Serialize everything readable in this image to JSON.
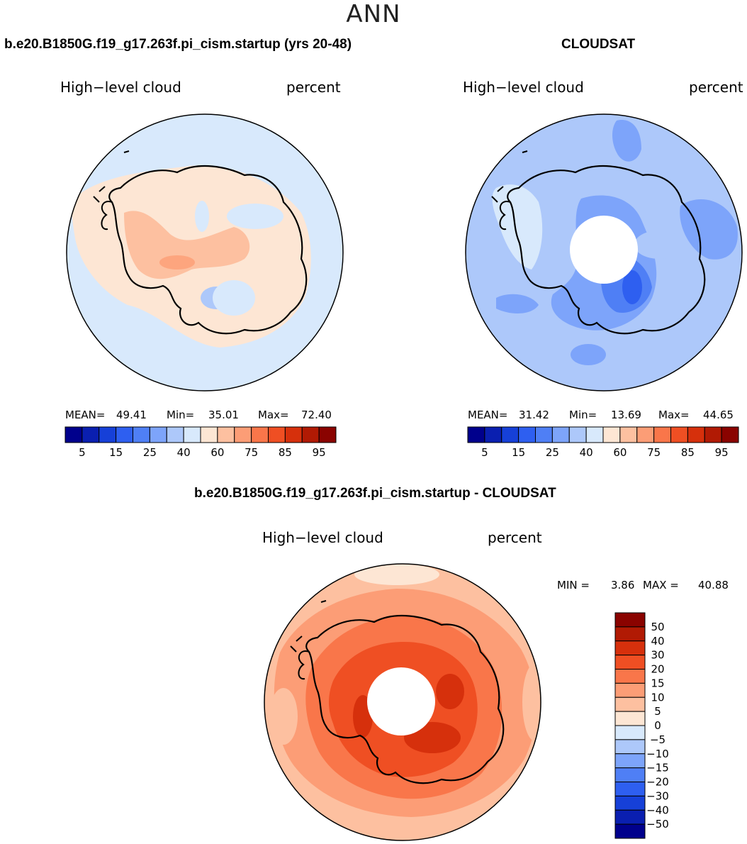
{
  "season": "ANN",
  "panels": [
    {
      "title": "b.e20.B1850G.f19_g17.263f.pi_cism.startup (yrs 20-48)",
      "variable": "High−level cloud",
      "units": "percent",
      "mean_label": "MEAN=",
      "mean": "49.41",
      "min_label": "Min=",
      "min": "35.01",
      "max_label": "Max=",
      "max": "72.40"
    },
    {
      "title": "CLOUDSAT",
      "variable": "High−level cloud",
      "units": "percent",
      "mean_label": "MEAN=",
      "mean": "31.42",
      "min_label": "Min=",
      "min": "13.69",
      "max_label": "Max=",
      "max": "44.65"
    },
    {
      "title": "b.e20.B1850G.f19_g17.263f.pi_cism.startup - CLOUDSAT",
      "variable": "High−level cloud",
      "units": "percent",
      "min_label": "MIN =",
      "min": "3.86",
      "max_label": "MAX =",
      "max": "40.88"
    }
  ],
  "abs_colorbar": {
    "colors": [
      "#00008c",
      "#0a1fb0",
      "#1640d8",
      "#2e5ff0",
      "#4f7ff5",
      "#7da4fa",
      "#adc8fa",
      "#d8e9fc",
      "#fde6d4",
      "#fdc0a0",
      "#fc9d76",
      "#f9764a",
      "#ef4f23",
      "#d6300c",
      "#b11a04",
      "#8a0300"
    ],
    "ticks": [
      "5",
      "15",
      "25",
      "40",
      "60",
      "75",
      "85",
      "95"
    ]
  },
  "diff_colorbar": {
    "colors": [
      "#00008c",
      "#0a1fb0",
      "#1640d8",
      "#2e5ff0",
      "#4f7ff5",
      "#7da4fa",
      "#adc8fa",
      "#d8e9fc",
      "#fde6d4",
      "#fdc0a0",
      "#fc9d76",
      "#f9764a",
      "#ef4f23",
      "#d6300c",
      "#b11a04",
      "#8a0300"
    ],
    "ticks": [
      "50",
      "40",
      "30",
      "20",
      "15",
      "10",
      "5",
      "0",
      "−5",
      "−10",
      "−15",
      "−20",
      "−30",
      "−40",
      "−50"
    ]
  }
}
